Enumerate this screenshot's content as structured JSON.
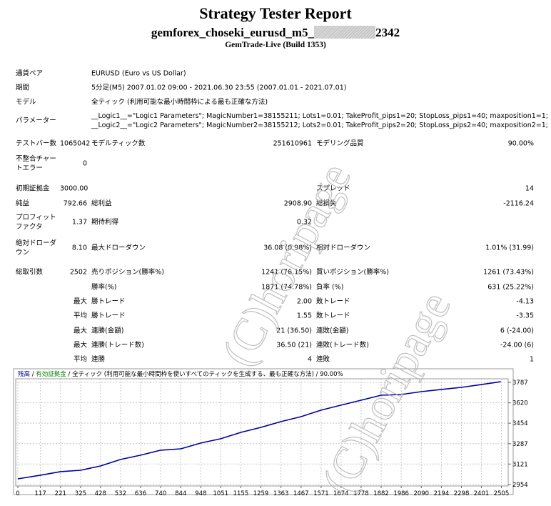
{
  "header": {
    "title": "Strategy Tester Report",
    "expert_prefix": "gemforex_choseki_eurusd_m5_",
    "expert_suffix": "2342",
    "build": "GemTrade-Live (Build 1353)"
  },
  "info": {
    "rows": [
      {
        "label": "通貨ペア",
        "value": [
          "EURUSD (Euro vs US Dollar)"
        ]
      },
      {
        "label": "期間",
        "value": [
          "5分足(M5) 2007.01.02 09:00 - 2021.06.30 23:55 (2007.01.01 - 2021.07.01)"
        ]
      },
      {
        "label": "モデル",
        "value": [
          "全ティック (利用可能な最小時間枠による最も正確な方法)"
        ]
      },
      {
        "label": "パラメーター",
        "value": [
          "__Logic1__=\"Logic1 Parameters\"; MagicNumber1=38155211; Lots1=0.01; TakeProfit_pips1=20; StopLoss_pips1=40; maxposition1=1;",
          "__Logic2__=\"Logic2 Parameters\"; MagicNumber2=38155212; Lots2=0.01; TakeProfit_pips2=20; StopLoss_pips2=40; maxposition2=1;"
        ]
      }
    ]
  },
  "stats": {
    "rows": [
      {
        "label1": "テストバー数",
        "value1": "1065042",
        "label2": "モデルティック数",
        "value2": "251610961",
        "label3": "モデリング品質",
        "value3": "90.00%"
      },
      {
        "label1": "不整合チャートエラー",
        "value1": "0"
      },
      {
        "label1": "初期証拠金",
        "value1": "3000.00",
        "label3": "スプレッド",
        "value3": "14"
      },
      {
        "label1": "純益",
        "value1": "792.66",
        "label2": "総利益",
        "value2": "2908.90",
        "label3": "総損失",
        "value3": "-2116.24"
      },
      {
        "label1": "プロフィットファクタ",
        "value1": "1.37",
        "label2": "期待利得",
        "value2": "0.32"
      },
      {
        "label1": "絶対ドローダウン",
        "value1": "8.10",
        "label2": "最大ドローダウン",
        "value2": "36.08 (0.98%)",
        "label3": "相対ドローダウン",
        "value3": "1.01% (31.99)"
      },
      {
        "label1": "総取引数",
        "value1": "2502",
        "label2": "売りポジション(勝率%)",
        "value2": "1241 (76.15%)",
        "label3": "買いポジション(勝率%)",
        "value3": "1261 (73.43%)"
      },
      {
        "label2": "勝率(%)",
        "value2": "1871 (74.78%)",
        "label3": "負率 (%)",
        "value3": "631 (25.22%)"
      },
      {
        "value1": "最大",
        "label2": "勝トレード",
        "value2": "2.00",
        "label3": "敗トレード",
        "value3": "-4.13"
      },
      {
        "value1": "平均",
        "label2": "勝トレード",
        "value2": "1.55",
        "label3": "敗トレード",
        "value3": "-3.35"
      },
      {
        "value1": "最大",
        "label2": "連勝(金額)",
        "value2": "21 (36.50)",
        "label3": "連敗(金額)",
        "value3": "6 (-24.00)"
      },
      {
        "value1": "最大",
        "label2": "連勝(トレード数)",
        "value2": "36.50 (21)",
        "label3": "連敗(トレード数)",
        "value3": "-24.00 (6)"
      },
      {
        "value1": "平均",
        "label2": "連勝",
        "value2": "4",
        "label3": "連敗",
        "value3": "1"
      }
    ]
  },
  "watermark": "(C)horipage",
  "chart_data": {
    "type": "line",
    "x": [
      0,
      117,
      221,
      325,
      428,
      532,
      636,
      740,
      844,
      948,
      1051,
      1155,
      1259,
      1363,
      1467,
      1571,
      1674,
      1778,
      1882,
      1986,
      2090,
      2194,
      2298,
      2401,
      2502
    ],
    "series": [
      {
        "name": "残高",
        "color": "#0000a0",
        "values": [
          3000,
          3030,
          3059,
          3070,
          3105,
          3158,
          3193,
          3234,
          3245,
          3292,
          3327,
          3379,
          3420,
          3467,
          3507,
          3560,
          3601,
          3641,
          3682,
          3688,
          3711,
          3729,
          3746,
          3769,
          3792
        ]
      }
    ],
    "legend_extra": [
      {
        "text": " / ",
        "color": "#000000"
      },
      {
        "text": "有効証拠金",
        "color": "#008000"
      },
      {
        "text": " / 全ティック (利用可能な最小時間枠を使いすべてのティックを生成する、最も正確な方法) / 90.00%",
        "color": "#000000"
      }
    ],
    "xlim": [
      0,
      2540
    ],
    "ylim": [
      2942,
      3816
    ],
    "xticks": [
      0,
      117,
      221,
      325,
      428,
      532,
      636,
      740,
      844,
      948,
      1051,
      1155,
      1259,
      1363,
      1467,
      1571,
      1674,
      1778,
      1882,
      1986,
      2090,
      2194,
      2298,
      2401,
      2505
    ],
    "yticks": [
      2954,
      3121,
      3287,
      3454,
      3620,
      3787
    ],
    "grid": true
  }
}
